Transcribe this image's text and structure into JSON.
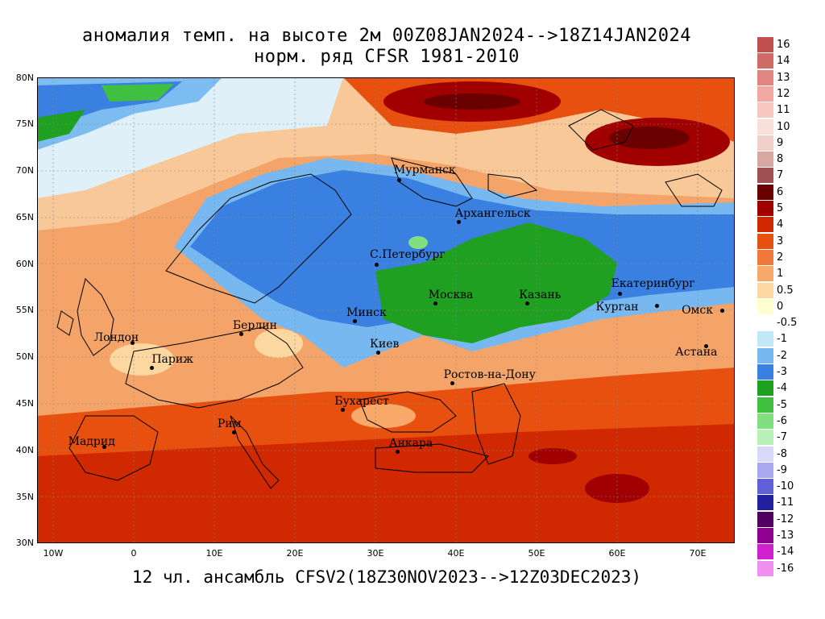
{
  "titles": {
    "line1": "аномалия темп. на высоте 2м 00Z08JAN2024-->18Z14JAN2024",
    "line2": "норм. ряд CFSR 1981-2010",
    "footer": "12 чл. ансамбль CFSV2(18Z30NOV2023-->12Z03DEC2023)"
  },
  "axes": {
    "lat_labels": [
      "80N",
      "75N",
      "70N",
      "65N",
      "60N",
      "55N",
      "50N",
      "45N",
      "40N",
      "35N",
      "30N"
    ],
    "lon_labels": [
      "10W",
      "0",
      "10E",
      "20E",
      "30E",
      "40E",
      "50E",
      "60E",
      "70E"
    ]
  },
  "cities": [
    {
      "name": "Мурманск",
      "lat": 69.0,
      "lon": 33.1
    },
    {
      "name": "Архангельск",
      "lat": 64.5,
      "lon": 40.5
    },
    {
      "name": "С.Петербург",
      "lat": 59.9,
      "lon": 30.3
    },
    {
      "name": "Москва",
      "lat": 55.8,
      "lon": 37.6
    },
    {
      "name": "Казань",
      "lat": 55.8,
      "lon": 49.1
    },
    {
      "name": "Екатеринбург",
      "lat": 56.8,
      "lon": 60.6
    },
    {
      "name": "Курган",
      "lat": 55.5,
      "lon": 65.3
    },
    {
      "name": "Омск",
      "lat": 55.0,
      "lon": 73.4
    },
    {
      "name": "Астана",
      "lat": 51.2,
      "lon": 71.4
    },
    {
      "name": "Минск",
      "lat": 53.9,
      "lon": 27.6
    },
    {
      "name": "Киев",
      "lat": 50.5,
      "lon": 30.5
    },
    {
      "name": "Берлин",
      "lat": 52.5,
      "lon": 13.4
    },
    {
      "name": "Лондон",
      "lat": 51.5,
      "lon": -0.1
    },
    {
      "name": "Париж",
      "lat": 48.9,
      "lon": 2.3
    },
    {
      "name": "Ростов-на-Дону",
      "lat": 47.2,
      "lon": 39.7
    },
    {
      "name": "Бухарест",
      "lat": 44.4,
      "lon": 26.1
    },
    {
      "name": "Рим",
      "lat": 41.9,
      "lon": 12.5
    },
    {
      "name": "Мадрид",
      "lat": 40.4,
      "lon": -3.7
    },
    {
      "name": "Анкара",
      "lat": 39.9,
      "lon": 32.9
    }
  ],
  "legend": [
    {
      "label": "16",
      "color": "#c0504d"
    },
    {
      "label": "14",
      "color": "#d06a66"
    },
    {
      "label": "13",
      "color": "#e08580"
    },
    {
      "label": "12",
      "color": "#f0a8a0"
    },
    {
      "label": "11",
      "color": "#f8c8c0"
    },
    {
      "label": "10",
      "color": "#f8e0d8"
    },
    {
      "label": "9",
      "color": "#f0d0c8"
    },
    {
      "label": "8",
      "color": "#d8a8a0"
    },
    {
      "label": "7",
      "color": "#a05050"
    },
    {
      "label": "6",
      "color": "#6a0000"
    },
    {
      "label": "5",
      "color": "#a00000"
    },
    {
      "label": "4",
      "color": "#d02800"
    },
    {
      "label": "3",
      "color": "#e85010"
    },
    {
      "label": "2",
      "color": "#f07838"
    },
    {
      "label": "1",
      "color": "#f8a868"
    },
    {
      "label": "0.5",
      "color": "#fcd8a0"
    },
    {
      "label": "0",
      "color": "#ffffd0"
    },
    {
      "label": "-0.5",
      "color": "#ffffff"
    },
    {
      "label": "-1",
      "color": "#c0e8f8"
    },
    {
      "label": "-2",
      "color": "#78b8f0"
    },
    {
      "label": "-3",
      "color": "#3a80e0"
    },
    {
      "label": "-4",
      "color": "#20a020"
    },
    {
      "label": "-5",
      "color": "#40c040"
    },
    {
      "label": "-6",
      "color": "#80e080"
    },
    {
      "label": "-7",
      "color": "#b8f0b8"
    },
    {
      "label": "-8",
      "color": "#d8d8f8"
    },
    {
      "label": "-9",
      "color": "#a8a8f0"
    },
    {
      "label": "-10",
      "color": "#6060d8"
    },
    {
      "label": "-11",
      "color": "#2020a0"
    },
    {
      "label": "-12",
      "color": "#500060"
    },
    {
      "label": "-13",
      "color": "#900090"
    },
    {
      "label": "-14",
      "color": "#d020d0"
    },
    {
      "label": "-16",
      "color": "#f090f0"
    }
  ]
}
